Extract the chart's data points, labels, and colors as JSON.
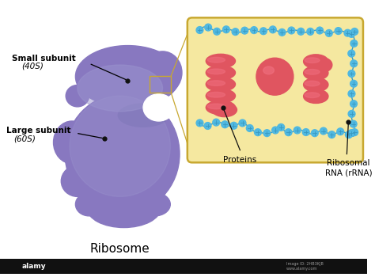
{
  "bg_color": "#ffffff",
  "ribosome_color": "#8878c0",
  "ribosome_groove": "#7a6fb5",
  "ribosome_inner": "#9b94ce",
  "box_color": "#f5e8a0",
  "box_edge": "#c8a830",
  "protein_color": "#e05560",
  "protein_light": "#f07080",
  "rna_color": "#50b8e0",
  "rna_dark": "#3898c0",
  "dot_color": "#111111",
  "line_color": "#111111",
  "title": "Ribosome",
  "small_subunit_label": "Small subunit",
  "small_subunit_sub": "(40S)",
  "large_subunit_label": "Large subunit",
  "large_subunit_sub": "(60S)",
  "proteins_label": "Proteins",
  "rrna_label": "Ribosomal\nRNA (rRNA)"
}
